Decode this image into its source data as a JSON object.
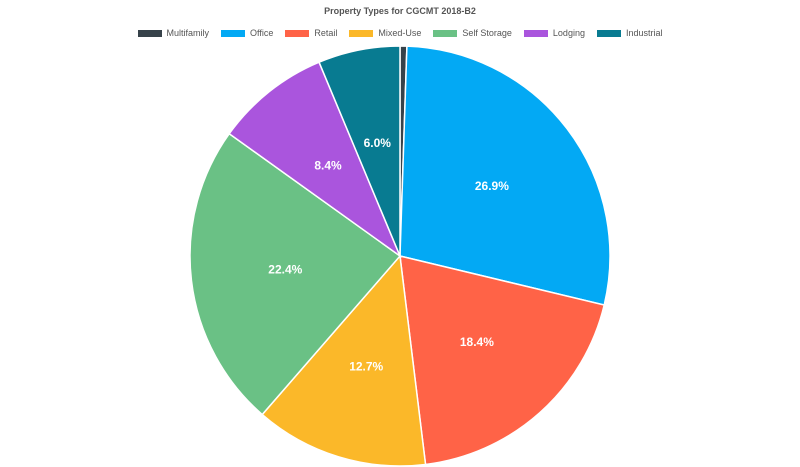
{
  "chart_data": {
    "type": "pie",
    "title": "Property Types for CGCMT 2018-B2",
    "legend_position": "top",
    "categories": [
      "Multifamily",
      "Office",
      "Retail",
      "Mixed-Use",
      "Self Storage",
      "Lodging",
      "Industrial"
    ],
    "values": [
      0.5,
      26.9,
      18.4,
      12.7,
      22.4,
      8.4,
      6.0
    ],
    "labels": [
      "",
      "26.9%",
      "18.4%",
      "12.7%",
      "22.4%",
      "8.4%",
      "6.0%"
    ],
    "colors": [
      "#37424a",
      "#03a9f4",
      "#ff6347",
      "#fbb829",
      "#6ac185",
      "#aa55dd",
      "#087b91"
    ]
  }
}
